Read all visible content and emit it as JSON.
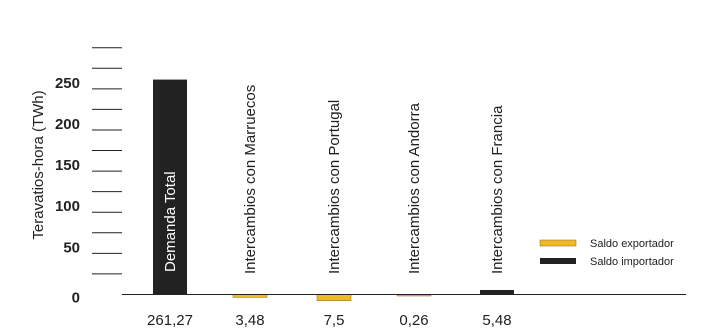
{
  "chart_data": {
    "type": "bar",
    "ylabel": "Teravatios-hora (TWh)",
    "ylim": [
      0,
      300
    ],
    "yticks": [
      0,
      50,
      100,
      150,
      200,
      250
    ],
    "categories": [
      "Demanda Total",
      "Intercambios con Marruecos",
      "Intercambios con Portugal",
      "Intercambios con Andorra",
      "Intercambios con Francia"
    ],
    "values": [
      261.27,
      -3.48,
      -7.5,
      -0.26,
      5.48
    ],
    "value_labels": [
      "261,27",
      "3,48",
      "7,5",
      "0,26",
      "5,48"
    ],
    "bar_types": [
      "total",
      "export",
      "export",
      "export",
      "import"
    ],
    "legend": {
      "position": "bottom-right",
      "entries": [
        {
          "key": "export",
          "label": "Saldo exportador",
          "color": "#f0b928"
        },
        {
          "key": "import",
          "label": "Saldo importador",
          "color": "#222222"
        }
      ]
    },
    "colors": {
      "total": "#222222",
      "export": "#f0b928",
      "import": "#222222"
    }
  }
}
